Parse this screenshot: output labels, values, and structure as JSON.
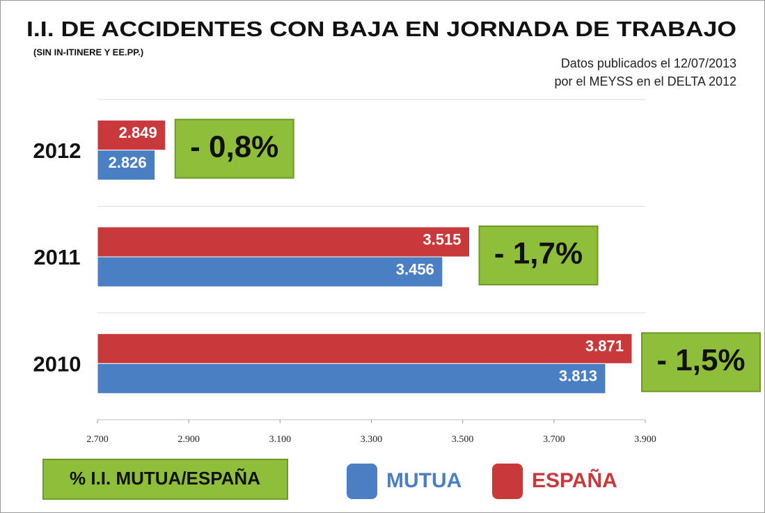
{
  "chart_data": {
    "type": "bar",
    "orientation": "horizontal",
    "title": "I.I. DE ACCIDENTES CON BAJA EN JORNADA DE TRABAJO",
    "subtitle": "(SIN IN-ITINERE Y EE.PP.)",
    "source": [
      "Datos publicados el 12/07/2013",
      "por el MEYSS en el DELTA 2012"
    ],
    "categories": [
      "2012",
      "2011",
      "2010"
    ],
    "series": [
      {
        "name": "MUTUA",
        "color": "#4a7fc4",
        "values": [
          2826,
          3456,
          3813
        ],
        "value_labels": [
          "2.826",
          "3.456",
          "3.813"
        ]
      },
      {
        "name": "ESPAÑA",
        "color": "#c9393b",
        "values": [
          2849,
          3515,
          3871
        ],
        "value_labels": [
          "2.849",
          "3.515",
          "3.871"
        ]
      }
    ],
    "annotations": [
      "- 0,8%",
      "- 1,7%",
      "- 1,5%"
    ],
    "annotation_color": "#8fbf3a",
    "legend_note": "% I.I. MUTUA/ESPAÑA",
    "xlim": [
      2700,
      3900
    ],
    "xticks": [
      {
        "value": 2700,
        "label": "2.700"
      },
      {
        "value": 2900,
        "label": "2.900"
      },
      {
        "value": 3100,
        "label": "3.100"
      },
      {
        "value": 3300,
        "label": "3.300"
      },
      {
        "value": 3500,
        "label": "3.500"
      },
      {
        "value": 3700,
        "label": "3.700"
      },
      {
        "value": 3900,
        "label": "3.900"
      }
    ],
    "legend": "bottom"
  }
}
